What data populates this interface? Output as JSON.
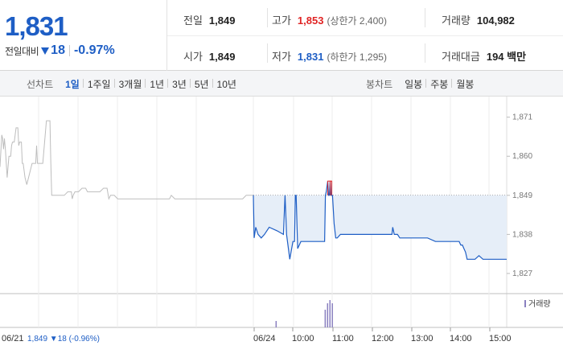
{
  "quote": {
    "current_price": "1,831",
    "change_label": "전일대비",
    "change_amount": "18",
    "change_percent": "-0.97%",
    "prev_close_label": "전일",
    "prev_close": "1,849",
    "open_label": "시가",
    "open": "1,849",
    "high_label": "고가",
    "high": "1,853",
    "upper_limit": "(상한가 2,400)",
    "low_label": "저가",
    "low": "1,831",
    "lower_limit": "(하한가 1,295)",
    "volume_label": "거래량",
    "volume": "104,982",
    "value_label": "거래대금",
    "value": "194 백만"
  },
  "toolbar": {
    "line_title": "선차트",
    "line_periods": [
      "1일",
      "1주일",
      "3개월",
      "1년",
      "3년",
      "5년",
      "10년"
    ],
    "line_active": "1일",
    "candle_title": "봉차트",
    "candle_periods": [
      "일봉",
      "주봉",
      "월봉"
    ]
  },
  "colors": {
    "accent_blue": "#1e5ec5",
    "up_red": "#e02424",
    "prev_day_line": "#bdbdbd",
    "today_fill": "#e6eef8",
    "volume_bar": "#8a80c0"
  },
  "chart_data": {
    "type": "line",
    "y_ticks": [
      "1,871",
      "1,860",
      "1,849",
      "1,838",
      "1,827"
    ],
    "ylim": [
      1822,
      1875
    ],
    "reference_price": 1849,
    "time_labels": [
      "06/24",
      "10:00",
      "11:00",
      "12:00",
      "13:00",
      "14:00",
      "15:00"
    ],
    "prev_day_label": "06/21",
    "prev_day_summary": "1,849 ▼18 (-0.96%)",
    "volume_legend": "거래량",
    "series": [
      {
        "x": [
          0,
          1,
          1.5,
          2,
          2.5,
          3,
          4,
          5,
          6,
          6.5,
          7,
          8,
          9,
          10,
          10.5,
          11,
          12,
          12.5,
          13,
          14,
          15,
          16,
          18,
          20,
          20.5,
          21,
          22,
          24,
          26,
          28,
          28.5,
          29,
          30,
          32,
          34,
          36,
          38,
          40,
          40.5,
          41,
          42,
          44,
          46,
          48,
          49,
          50,
          52,
          54,
          56,
          58,
          60,
          61,
          62,
          64,
          66,
          68,
          70,
          72,
          74,
          76,
          78,
          80,
          82,
          84,
          86,
          88,
          90,
          92,
          94,
          95,
          96,
          98,
          100,
          102,
          104,
          106,
          108,
          110,
          112,
          114,
          116,
          118,
          120,
          121,
          122,
          124,
          125,
          126,
          128,
          130,
          132,
          134,
          136,
          138,
          140,
          142
        ],
        "values": [
          1857,
          1866,
          1865,
          1862,
          1865,
          1862,
          1854,
          1860,
          1860,
          1863,
          1864,
          1864,
          1868,
          1868,
          1863,
          1864,
          1864,
          1858,
          1858,
          1854,
          1852,
          1854,
          1858,
          1858,
          1863,
          1858,
          1858,
          1858,
          1870,
          1870,
          1858,
          1849,
          1849,
          1849,
          1849,
          1849,
          1850,
          1850,
          1848,
          1849,
          1850,
          1850,
          1851,
          1851,
          1850,
          1850,
          1850,
          1850,
          1850,
          1851,
          1851,
          1848,
          1849,
          1849,
          1848,
          1848,
          1848,
          1848,
          1848,
          1848,
          1848,
          1848,
          1848,
          1848,
          1848,
          1848,
          1848,
          1848,
          1848,
          1848,
          1849,
          1848,
          1848,
          1848,
          1848,
          1848,
          1848,
          1848,
          1848,
          1848,
          1848,
          1848,
          1848,
          1848,
          1848,
          1848,
          1848,
          1848,
          1848,
          1848,
          1848,
          1848,
          1848,
          1849,
          1849,
          1849
        ]
      },
      {
        "x": [
          0,
          1,
          3,
          6,
          10,
          14,
          20,
          30,
          38,
          40,
          42,
          46,
          50,
          52,
          53,
          54,
          56,
          60,
          70,
          80,
          90,
          91,
          92,
          94,
          95,
          96,
          97,
          98,
          100,
          102,
          104,
          106,
          110,
          120,
          130,
          140,
          150,
          160,
          170,
          175,
          176,
          178,
          180,
          182,
          185,
          190,
          200,
          210,
          220,
          230,
          240,
          250,
          260,
          262,
          264,
          266,
          268,
          270,
          275,
          280,
          285,
          290,
          300,
          310,
          315,
          320
        ],
        "values": [
          1849,
          1837,
          1840,
          1838,
          1837,
          1838,
          1840,
          1839,
          1838,
          1849,
          1838,
          1831,
          1836,
          1836,
          1849,
          1849,
          1834,
          1836,
          1836,
          1836,
          1836,
          1849,
          1850,
          1853,
          1849,
          1849,
          1853,
          1849,
          1849,
          1841,
          1837,
          1837,
          1838,
          1838,
          1838,
          1838,
          1838,
          1838,
          1838,
          1838,
          1840,
          1838,
          1838,
          1838,
          1837,
          1837,
          1837,
          1837,
          1837,
          1836,
          1836,
          1836,
          1836,
          1835,
          1835,
          1834,
          1833,
          1831,
          1831,
          1831,
          1832,
          1831,
          1831,
          1831,
          1831,
          1831
        ]
      }
    ],
    "volume": {
      "x": [
        28,
        90,
        93,
        96,
        99
      ],
      "values": [
        8,
        22,
        30,
        34,
        30
      ]
    }
  }
}
